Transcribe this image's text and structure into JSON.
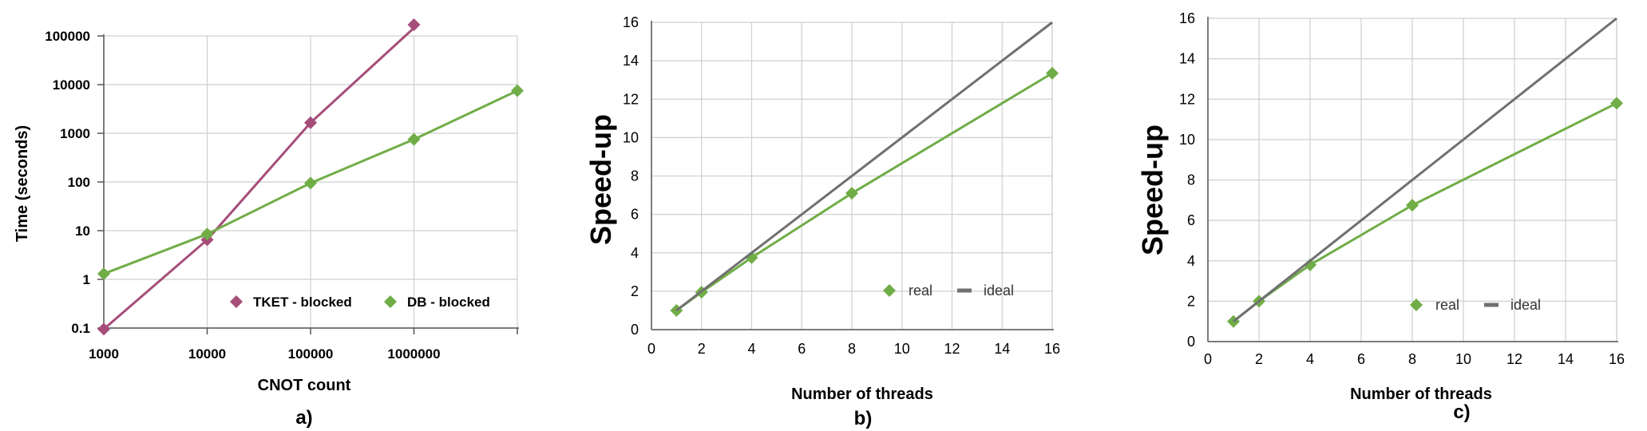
{
  "colors": {
    "db": "#70AD47",
    "tket": "#A64D79",
    "ideal": "#707070",
    "grid": "#cfcfcf",
    "axis": "#555555"
  },
  "chart_data": [
    {
      "id": "a",
      "type": "line",
      "panel_label": "a)",
      "xlabel": "CNOT count",
      "ylabel": "Time (seconds)",
      "xscale": "log",
      "yscale": "log",
      "xlim": [
        1000,
        10000000
      ],
      "ylim": [
        0.1,
        100000
      ],
      "x_ticks": [
        1000,
        10000,
        100000,
        1000000,
        10000000
      ],
      "x_tick_labels": [
        "1000",
        "10000",
        "100000",
        "1000000",
        ""
      ],
      "y_ticks": [
        0.1,
        1,
        10,
        100,
        1000,
        10000,
        100000
      ],
      "y_tick_labels": [
        "0.1",
        "1",
        "10",
        "100",
        "1000",
        "10000",
        "100000"
      ],
      "legend_position": "bottom-right",
      "grid": true,
      "series": [
        {
          "name": "TKET - blocked",
          "color": "#A64D79",
          "marker": "diamond",
          "points": [
            [
              1000,
              0.095
            ],
            [
              10000,
              6.5
            ],
            [
              100000,
              1650
            ],
            [
              1000000,
              170000
            ]
          ]
        },
        {
          "name": "DB - blocked",
          "color": "#70AD47",
          "marker": "diamond",
          "points": [
            [
              1000,
              1.3
            ],
            [
              10000,
              8.5
            ],
            [
              100000,
              95
            ],
            [
              1000000,
              750
            ],
            [
              10000000,
              7500
            ]
          ]
        }
      ]
    },
    {
      "id": "b",
      "type": "line",
      "panel_label": "b)",
      "xlabel": "Number of threads",
      "ylabel": "Speed-up",
      "xlim": [
        0,
        16
      ],
      "ylim": [
        0,
        16
      ],
      "x_ticks": [
        0,
        2,
        4,
        6,
        8,
        10,
        12,
        14,
        16
      ],
      "y_ticks": [
        0,
        2,
        4,
        6,
        8,
        10,
        12,
        14,
        16
      ],
      "legend_position": "bottom-right",
      "grid": true,
      "series": [
        {
          "name": "real",
          "color": "#70AD47",
          "marker": "diamond",
          "points": [
            [
              1,
              1
            ],
            [
              2,
              1.95
            ],
            [
              4,
              3.75
            ],
            [
              8,
              7.1
            ],
            [
              16,
              13.35
            ]
          ]
        },
        {
          "name": "ideal",
          "color": "#707070",
          "marker": "none",
          "points": [
            [
              1,
              1
            ],
            [
              16,
              16
            ]
          ]
        }
      ]
    },
    {
      "id": "c",
      "type": "line",
      "panel_label": "c)",
      "xlabel": "Number of threads",
      "ylabel": "Speed-up",
      "xlim": [
        0,
        16
      ],
      "ylim": [
        0,
        16
      ],
      "x_ticks": [
        0,
        2,
        4,
        6,
        8,
        10,
        12,
        14,
        16
      ],
      "y_ticks": [
        0,
        2,
        4,
        6,
        8,
        10,
        12,
        14,
        16
      ],
      "legend_position": "bottom-right",
      "grid": true,
      "series": [
        {
          "name": "real",
          "color": "#70AD47",
          "marker": "diamond",
          "points": [
            [
              1,
              1
            ],
            [
              2,
              2.0
            ],
            [
              4,
              3.8
            ],
            [
              8,
              6.75
            ],
            [
              16,
              11.8
            ]
          ]
        },
        {
          "name": "ideal",
          "color": "#707070",
          "marker": "none",
          "points": [
            [
              1,
              1
            ],
            [
              16,
              16
            ]
          ]
        }
      ]
    }
  ]
}
